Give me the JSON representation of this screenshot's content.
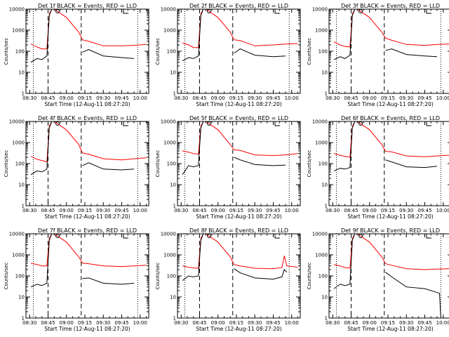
{
  "figure": {
    "background": "#ffffff",
    "x_tick_labels": [
      "08:30",
      "08:45",
      "09:00",
      "09:15",
      "09:30",
      "09:45",
      "10:00"
    ],
    "y_tick_labels": [
      "1",
      "10",
      "100",
      "1000",
      "10000"
    ],
    "colors": {
      "events": "#000000",
      "lld": "#ff0000",
      "frame": "#000000"
    }
  },
  "chart_data": [
    {
      "type": "line",
      "title": "Det 1f  BLACK = Events, RED = LLD",
      "xlabel": "Start Time (12-Aug-11 08:27:20)",
      "ylabel": "Counts/sec",
      "xlim": [
        "08:27",
        "10:07"
      ],
      "ylim": [
        1,
        10000
      ],
      "yscale": "log",
      "marker_lines": {
        "dotted": [
          "08:33",
          "09:58"
        ],
        "dashed": [
          "08:45",
          "09:12"
        ]
      },
      "series": [
        {
          "name": "Events",
          "color": "#000000",
          "x": [
            "08:31",
            "08:36",
            "08:40",
            "08:44",
            "08:46",
            "08:48",
            "08:50",
            "08:55",
            "09:12",
            "09:13",
            "09:18",
            "09:30",
            "09:45",
            "09:55"
          ],
          "y": [
            30,
            45,
            40,
            60,
            5000,
            10000,
            10000,
            null,
            null,
            90,
            120,
            60,
            50,
            45
          ]
        },
        {
          "name": "LLD",
          "color": "#ff0000",
          "x": [
            "08:31",
            "08:36",
            "08:40",
            "08:44",
            "08:46",
            "08:48",
            "08:50",
            "09:00",
            "09:10",
            "09:13",
            "09:18",
            "09:30",
            "09:45",
            "09:55",
            "10:05"
          ],
          "y": [
            220,
            160,
            130,
            130,
            6000,
            10000,
            10000,
            4000,
            800,
            350,
            300,
            180,
            180,
            190,
            210
          ]
        }
      ]
    },
    {
      "type": "line",
      "title": "Det 2f  BLACK = Events, RED = LLD",
      "xlabel": "Start Time (12-Aug-11 08:27:20)",
      "ylabel": "Counts/sec",
      "xlim": [
        "08:27",
        "10:07"
      ],
      "ylim": [
        1,
        10000
      ],
      "yscale": "log",
      "marker_lines": {
        "dotted": [
          "08:33",
          "09:58"
        ],
        "dashed": [
          "08:45",
          "09:12"
        ]
      },
      "series": [
        {
          "name": "Events",
          "color": "#000000",
          "x": [
            "08:31",
            "08:36",
            "08:40",
            "08:44",
            "08:46",
            "08:48",
            "08:50",
            "08:55",
            "09:12",
            "09:13",
            "09:18",
            "09:30",
            "09:45",
            "09:55"
          ],
          "y": [
            35,
            50,
            45,
            60,
            5000,
            10000,
            10000,
            null,
            null,
            80,
            130,
            65,
            55,
            60
          ]
        },
        {
          "name": "LLD",
          "color": "#ff0000",
          "x": [
            "08:31",
            "08:36",
            "08:40",
            "08:44",
            "08:46",
            "08:48",
            "08:50",
            "09:00",
            "09:10",
            "09:13",
            "09:18",
            "09:30",
            "09:45",
            "09:55",
            "10:05"
          ],
          "y": [
            250,
            200,
            150,
            150,
            6000,
            10000,
            10000,
            4000,
            800,
            350,
            320,
            180,
            200,
            220,
            230
          ]
        }
      ]
    },
    {
      "type": "line",
      "title": "Det 3f  BLACK = Events, RED = LLD",
      "xlabel": "Start Time (12-Aug-11 08:27:20)",
      "ylabel": "Counts/sec",
      "xlim": [
        "08:27",
        "10:07"
      ],
      "ylim": [
        1,
        10000
      ],
      "yscale": "log",
      "marker_lines": {
        "dotted": [
          "08:33",
          "09:58"
        ],
        "dashed": [
          "08:45",
          "09:12"
        ]
      },
      "series": [
        {
          "name": "Events",
          "color": "#000000",
          "x": [
            "08:31",
            "08:36",
            "08:40",
            "08:44",
            "08:46",
            "08:48",
            "08:50",
            "08:55",
            "09:12",
            "09:13",
            "09:18",
            "09:30",
            "09:45",
            "09:55"
          ],
          "y": [
            40,
            55,
            45,
            65,
            5000,
            10000,
            10000,
            null,
            null,
            110,
            130,
            70,
            60,
            55
          ]
        },
        {
          "name": "LLD",
          "color": "#ff0000",
          "x": [
            "08:31",
            "08:36",
            "08:40",
            "08:44",
            "08:46",
            "08:48",
            "08:50",
            "09:00",
            "09:10",
            "09:13",
            "09:18",
            "09:30",
            "09:45",
            "09:55",
            "10:05"
          ],
          "y": [
            280,
            200,
            170,
            160,
            6000,
            10000,
            10000,
            4000,
            800,
            420,
            330,
            210,
            190,
            210,
            220
          ]
        }
      ]
    },
    {
      "type": "line",
      "title": "Det 4f  BLACK = Events, RED = LLD",
      "xlabel": "Start Time (12-Aug-11 08:27:20)",
      "ylabel": "Counts/sec",
      "xlim": [
        "08:27",
        "10:07"
      ],
      "ylim": [
        1,
        10000
      ],
      "yscale": "log",
      "marker_lines": {
        "dotted": [
          "08:33",
          "09:58"
        ],
        "dashed": [
          "08:45",
          "09:12"
        ]
      },
      "series": [
        {
          "name": "Events",
          "color": "#000000",
          "x": [
            "08:31",
            "08:36",
            "08:40",
            "08:44",
            "08:46",
            "08:48",
            "08:50",
            "08:55",
            "09:12",
            "09:13",
            "09:18",
            "09:30",
            "09:45",
            "09:55"
          ],
          "y": [
            30,
            45,
            40,
            55,
            5000,
            10000,
            10000,
            null,
            null,
            80,
            110,
            55,
            50,
            55
          ]
        },
        {
          "name": "LLD",
          "color": "#ff0000",
          "x": [
            "08:31",
            "08:36",
            "08:40",
            "08:44",
            "08:46",
            "08:48",
            "08:50",
            "09:00",
            "09:10",
            "09:13",
            "09:18",
            "09:30",
            "09:45",
            "09:55",
            "10:05"
          ],
          "y": [
            220,
            160,
            140,
            120,
            6000,
            10000,
            10000,
            4000,
            800,
            320,
            280,
            170,
            150,
            170,
            190
          ]
        }
      ]
    },
    {
      "type": "line",
      "title": "Det 5f  BLACK = Events, RED = LLD",
      "xlabel": "Start Time (12-Aug-11 08:27:20)",
      "ylabel": "Counts/sec",
      "xlim": [
        "08:27",
        "10:07"
      ],
      "ylim": [
        1,
        10000
      ],
      "yscale": "log",
      "marker_lines": {
        "dotted": [
          "08:33",
          "09:58"
        ],
        "dashed": [
          "08:45",
          "09:12"
        ]
      },
      "series": [
        {
          "name": "Events",
          "color": "#000000",
          "x": [
            "08:31",
            "08:36",
            "08:40",
            "08:44",
            "08:46",
            "08:48",
            "08:50",
            "08:55",
            "09:12",
            "09:13",
            "09:18",
            "09:30",
            "09:45",
            "09:55"
          ],
          "y": [
            30,
            80,
            70,
            80,
            5000,
            10000,
            10000,
            null,
            null,
            200,
            150,
            90,
            80,
            85
          ]
        },
        {
          "name": "LLD",
          "color": "#ff0000",
          "x": [
            "08:31",
            "08:36",
            "08:40",
            "08:44",
            "08:46",
            "08:48",
            "08:50",
            "09:00",
            "09:10",
            "09:13",
            "09:18",
            "09:30",
            "09:45",
            "09:55",
            "10:05"
          ],
          "y": [
            400,
            350,
            300,
            280,
            6000,
            10000,
            10000,
            4000,
            800,
            450,
            420,
            260,
            240,
            260,
            300
          ]
        }
      ]
    },
    {
      "type": "line",
      "title": "Det 6f  BLACK = Events, RED = LLD",
      "xlabel": "Start Time (12-Aug-11 08:27:20)",
      "ylabel": "Counts/sec",
      "xlim": [
        "08:27",
        "10:07"
      ],
      "ylim": [
        1,
        10000
      ],
      "yscale": "log",
      "marker_lines": {
        "dotted": [
          "08:33",
          "09:58"
        ],
        "dashed": [
          "08:45",
          "09:12"
        ]
      },
      "series": [
        {
          "name": "Events",
          "color": "#000000",
          "x": [
            "08:31",
            "08:36",
            "08:40",
            "08:44",
            "08:46",
            "08:48",
            "08:50",
            "08:55",
            "09:12",
            "09:13",
            "09:18",
            "09:30",
            "09:45",
            "09:55"
          ],
          "y": [
            45,
            60,
            55,
            65,
            5000,
            10000,
            10000,
            null,
            null,
            150,
            120,
            70,
            65,
            75
          ]
        },
        {
          "name": "LLD",
          "color": "#ff0000",
          "x": [
            "08:31",
            "08:36",
            "08:40",
            "08:44",
            "08:46",
            "08:48",
            "08:50",
            "09:00",
            "09:10",
            "09:13",
            "09:18",
            "09:30",
            "09:45",
            "09:55",
            "10:05"
          ],
          "y": [
            300,
            250,
            220,
            200,
            6000,
            10000,
            10000,
            4000,
            800,
            380,
            360,
            230,
            210,
            230,
            250
          ]
        }
      ]
    },
    {
      "type": "line",
      "title": "Det 7f  BLACK = Events, RED = LLD",
      "xlabel": "Start Time (12-Aug-11 08:27:20)",
      "ylabel": "Counts/sec",
      "xlim": [
        "08:27",
        "10:07"
      ],
      "ylim": [
        1,
        10000
      ],
      "yscale": "log",
      "marker_lines": {
        "dotted": [
          "08:33",
          "09:58"
        ],
        "dashed": [
          "08:45",
          "09:12"
        ]
      },
      "series": [
        {
          "name": "Events",
          "color": "#000000",
          "x": [
            "08:31",
            "08:36",
            "08:40",
            "08:44",
            "08:46",
            "08:48",
            "08:50",
            "08:55",
            "09:12",
            "09:13",
            "09:18",
            "09:30",
            "09:45",
            "09:55"
          ],
          "y": [
            30,
            40,
            35,
            45,
            5000,
            10000,
            10000,
            null,
            null,
            75,
            80,
            45,
            40,
            45
          ]
        },
        {
          "name": "LLD",
          "color": "#ff0000",
          "x": [
            "08:31",
            "08:36",
            "08:40",
            "08:44",
            "08:46",
            "08:48",
            "08:50",
            "09:00",
            "09:10",
            "09:13",
            "09:18",
            "09:30",
            "09:45",
            "09:55",
            "10:05"
          ],
          "y": [
            400,
            350,
            300,
            300,
            6000,
            10000,
            10000,
            4000,
            800,
            400,
            380,
            300,
            280,
            300,
            320
          ]
        }
      ]
    },
    {
      "type": "line",
      "title": "Det 8f  BLACK = Events, RED = LLD",
      "xlabel": "Start Time (12-Aug-11 08:27:20)",
      "ylabel": "Counts/sec",
      "xlim": [
        "08:27",
        "10:07"
      ],
      "ylim": [
        1,
        10000
      ],
      "yscale": "log",
      "marker_lines": {
        "dotted": [
          "08:33",
          "09:58"
        ],
        "dashed": [
          "08:45",
          "09:12"
        ]
      },
      "series": [
        {
          "name": "Events",
          "color": "#000000",
          "x": [
            "08:31",
            "08:36",
            "08:40",
            "08:44",
            "08:46",
            "08:48",
            "08:50",
            "08:55",
            "09:12",
            "09:13",
            "09:18",
            "09:30",
            "09:45",
            "09:52",
            "09:54",
            "09:56"
          ],
          "y": [
            60,
            100,
            90,
            100,
            5000,
            10000,
            10000,
            null,
            null,
            220,
            140,
            80,
            70,
            90,
            200,
            150
          ]
        },
        {
          "name": "LLD",
          "color": "#ff0000",
          "x": [
            "08:31",
            "08:36",
            "08:40",
            "08:44",
            "08:46",
            "08:48",
            "08:50",
            "09:00",
            "09:10",
            "09:13",
            "09:18",
            "09:30",
            "09:45",
            "09:52",
            "09:54",
            "09:56",
            "10:05"
          ],
          "y": [
            300,
            260,
            240,
            230,
            6000,
            10000,
            10000,
            4000,
            800,
            350,
            300,
            230,
            220,
            250,
            900,
            300,
            260
          ]
        }
      ]
    },
    {
      "type": "line",
      "title": "Det 9f  BLACK = Events, RED = LLD",
      "xlabel": "Start Time (12-Aug-11 08:27:20)",
      "ylabel": "Counts/sec",
      "xlim": [
        "08:27",
        "10:07"
      ],
      "ylim": [
        1,
        10000
      ],
      "yscale": "log",
      "marker_lines": {
        "dotted": [
          "08:33",
          "09:58"
        ],
        "dashed": [
          "08:45",
          "09:12"
        ]
      },
      "series": [
        {
          "name": "Events",
          "color": "#000000",
          "x": [
            "08:31",
            "08:36",
            "08:40",
            "08:44",
            "08:46",
            "08:48",
            "08:50",
            "08:55",
            "09:12",
            "09:13",
            "09:18",
            "09:30",
            "09:45",
            "09:57",
            "09:58"
          ],
          "y": [
            25,
            40,
            35,
            40,
            5000,
            10000,
            10000,
            null,
            null,
            150,
            90,
            30,
            25,
            15,
            1
          ]
        },
        {
          "name": "LLD",
          "color": "#ff0000",
          "x": [
            "08:31",
            "08:36",
            "08:40",
            "08:44",
            "08:46",
            "08:48",
            "08:50",
            "09:00",
            "09:10",
            "09:13",
            "09:18",
            "09:30",
            "09:45",
            "09:55",
            "10:05"
          ],
          "y": [
            350,
            300,
            250,
            230,
            6000,
            10000,
            10000,
            4000,
            800,
            380,
            320,
            220,
            200,
            210,
            220
          ]
        }
      ]
    }
  ]
}
